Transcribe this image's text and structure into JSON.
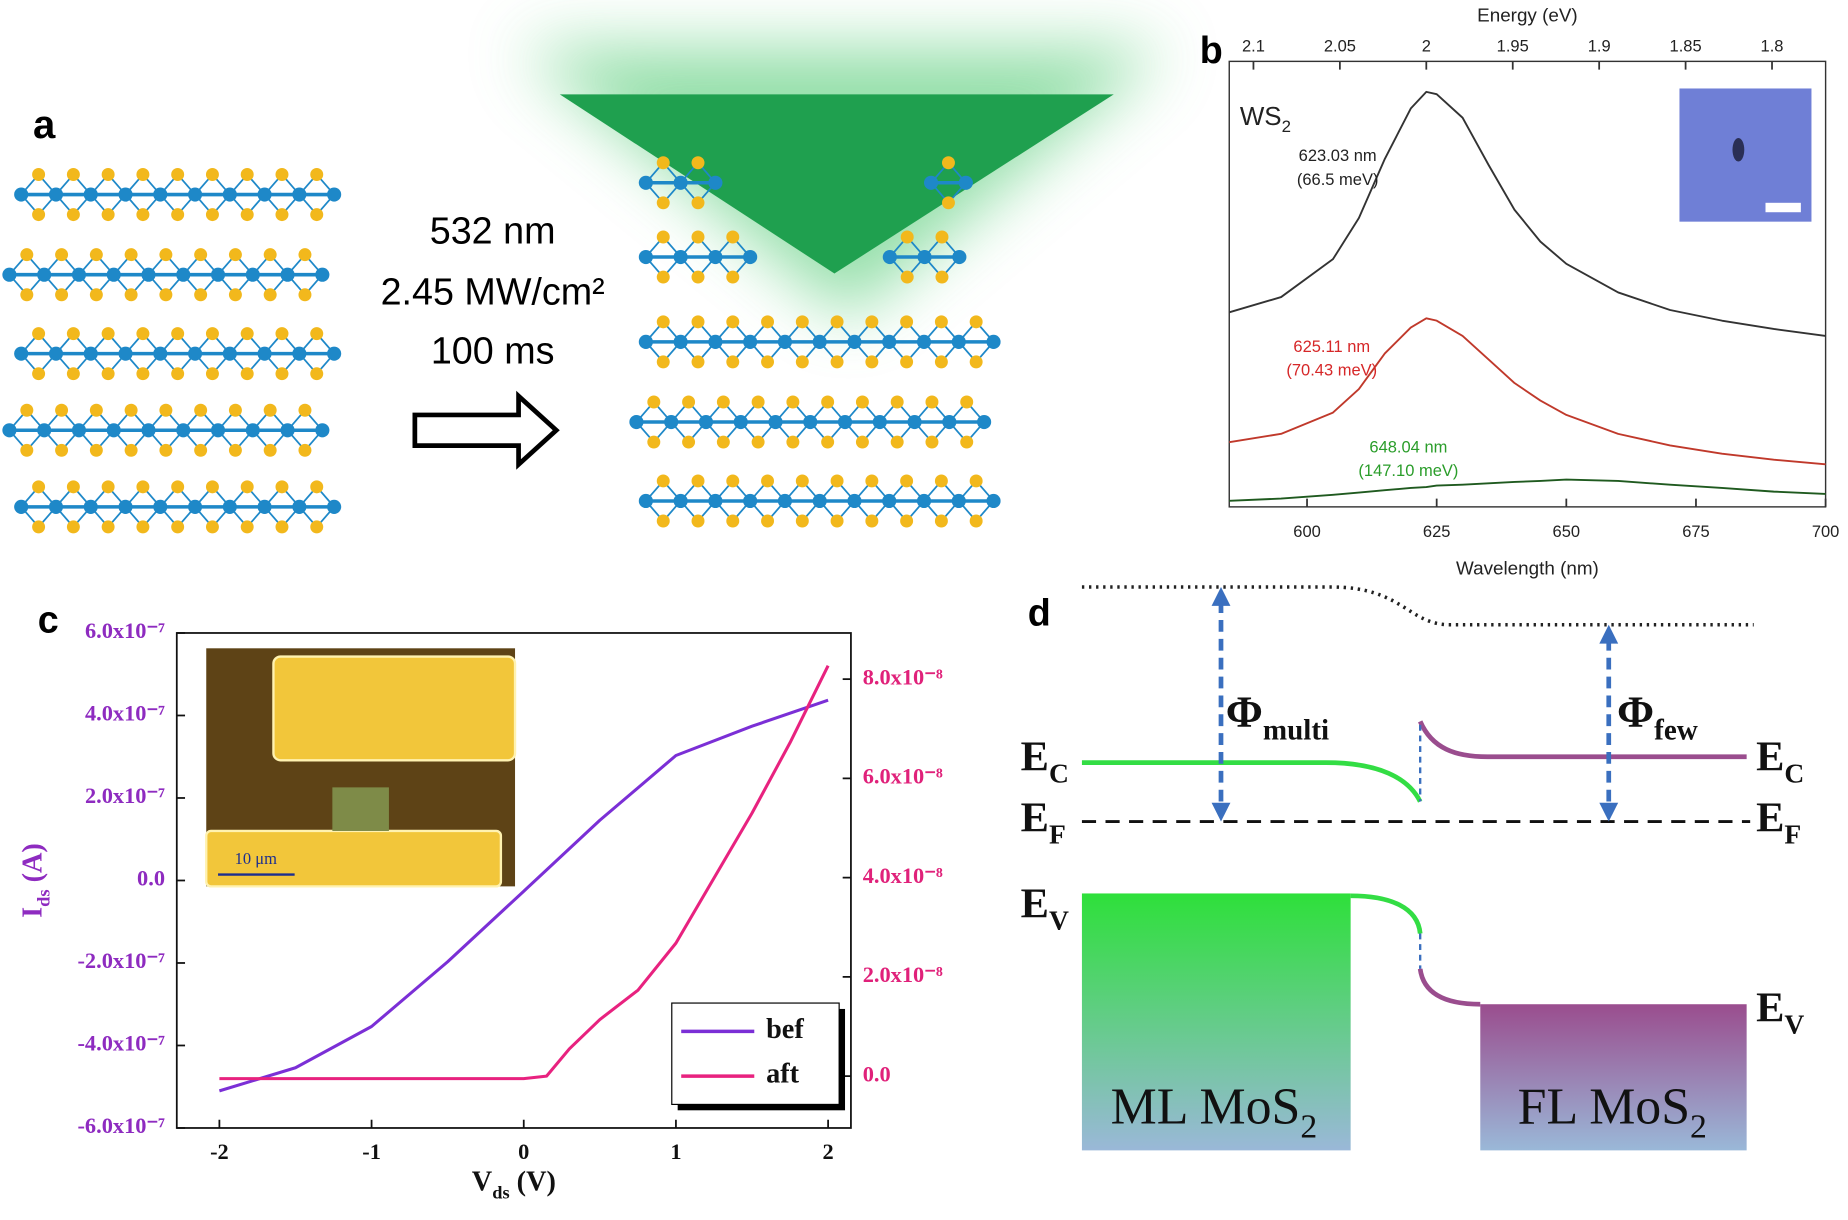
{
  "panels": {
    "a": {
      "label": "a",
      "conditions": [
        "532 nm",
        "2.45 MW/cm²",
        "100 ms"
      ]
    },
    "d": {
      "label": "d",
      "labels": [
        {
          "main": "E",
          "sub": "C"
        },
        {
          "main": "E",
          "sub": "F"
        },
        {
          "main": "E",
          "sub": "V"
        },
        {
          "main": "E",
          "sub": "C"
        },
        {
          "main": "E",
          "sub": "F"
        },
        {
          "main": "E",
          "sub": "V"
        },
        {
          "main": "Φ",
          "sub": "multi"
        },
        {
          "main": "Φ",
          "sub": "few"
        },
        {
          "main": "ML MoS",
          "sub": "2"
        },
        {
          "main": "FL MoS",
          "sub": "2"
        }
      ]
    }
  },
  "chart_data": [
    {
      "type": "line",
      "label": "b",
      "xlabel": "Wavelength (nm)",
      "x2label": "Energy (eV)",
      "annotation": {
        "main": "WS",
        "sub": "2"
      },
      "annotations": [
        {
          "lines": [
            "623.03 nm",
            "(66.5 meV)"
          ],
          "color": "#222222"
        },
        {
          "lines": [
            "625.11 nm",
            "(70.43 meV)"
          ],
          "color": "#d62728"
        },
        {
          "lines": [
            "648.04 nm",
            "(147.10 meV)"
          ],
          "color": "#2a9d2a"
        }
      ],
      "x": [
        585,
        595,
        605,
        610,
        615,
        620,
        623,
        625,
        630,
        635,
        640,
        645,
        650,
        660,
        670,
        680,
        690,
        700
      ],
      "xlim": [
        585,
        700
      ],
      "xticks": [
        600,
        625,
        650,
        675,
        700
      ],
      "x2lim": [
        2.114,
        1.769
      ],
      "x2ticks": [
        2.1,
        2.05,
        2,
        1.95,
        1.9,
        1.85,
        1.8
      ],
      "ylim": [
        0,
        96.4
      ],
      "series": [
        {
          "color": "#333333",
          "values": [
            42.1,
            45.4,
            53.6,
            62.5,
            75.3,
            86.2,
            89.8,
            89.3,
            84.2,
            74.0,
            64.3,
            57.4,
            52.6,
            46.4,
            42.6,
            40.3,
            38.5,
            37.0
          ]
        },
        {
          "color": "#c0392b",
          "values": [
            14.0,
            15.8,
            20.4,
            25.5,
            33.2,
            38.8,
            40.8,
            40.3,
            37.0,
            31.9,
            26.8,
            23.0,
            19.9,
            15.8,
            13.3,
            11.5,
            10.2,
            9.2
          ]
        },
        {
          "color": "#1f5a1f",
          "values": [
            1.3,
            1.8,
            2.6,
            3.1,
            3.6,
            4.1,
            4.3,
            4.6,
            4.8,
            5.1,
            5.4,
            5.6,
            5.9,
            5.6,
            4.8,
            4.1,
            3.3,
            2.8
          ]
        }
      ]
    },
    {
      "type": "line",
      "label": "c",
      "xlabel": {
        "main": "V",
        "sub": "ds",
        "rest": " (V)"
      },
      "ylabel": {
        "main": "I",
        "sub": "ds",
        "rest": " (A)"
      },
      "inset_scale": "10 μm",
      "xlim": [
        -2.28,
        2.15
      ],
      "xticks": [
        -2,
        -1,
        0,
        1,
        2
      ],
      "ylim": [
        -6e-07,
        6e-07
      ],
      "yticks": [
        {
          "value": -6e-07,
          "label": "-6.0x10⁻⁷"
        },
        {
          "value": -4e-07,
          "label": "-4.0x10⁻⁷"
        },
        {
          "value": -2e-07,
          "label": "-2.0x10⁻⁷"
        },
        {
          "value": 0,
          "label": "0.0"
        },
        {
          "value": 2e-07,
          "label": "2.0x10⁻⁷"
        },
        {
          "value": 4e-07,
          "label": "4.0x10⁻⁷"
        },
        {
          "value": 6e-07,
          "label": "6.0x10⁻⁷"
        }
      ],
      "y2lim": [
        -1.045e-08,
        8.93e-08
      ],
      "y2ticks": [
        {
          "value": 0,
          "label": "0.0"
        },
        {
          "value": 2e-08,
          "label": "2.0x10⁻⁸"
        },
        {
          "value": 4e-08,
          "label": "4.0x10⁻⁸"
        },
        {
          "value": 6e-08,
          "label": "6.0x10⁻⁸"
        },
        {
          "value": 8e-08,
          "label": "8.0x10⁻⁸"
        }
      ],
      "ytick_color": "#8e2bc0",
      "y2tick_color": "#e0217a",
      "legend": "lower right",
      "series": [
        {
          "name": "bef",
          "color": "#7b2fd6",
          "x": [
            -2,
            -1.5,
            -1,
            -0.5,
            0,
            0.5,
            1,
            1.5,
            2
          ],
          "values": [
            -5.1e-07,
            -4.54e-07,
            -3.54e-07,
            -1.97e-07,
            -2.6e-08,
            1.46e-07,
            3.03e-07,
            3.74e-07,
            4.37e-07
          ]
        },
        {
          "name": "aft",
          "color": "#e8227f",
          "axis": "y2",
          "x": [
            -2,
            -1,
            0,
            0.15,
            0.3,
            0.5,
            0.75,
            1,
            1.25,
            1.5,
            1.75,
            2
          ],
          "values": [
            -5e-10,
            -5e-10,
            -5e-10,
            0,
            5.5e-09,
            1.14e-08,
            1.73e-08,
            2.68e-08,
            3.99e-08,
            5.3e-08,
            6.72e-08,
            8.27e-08
          ]
        }
      ]
    }
  ]
}
